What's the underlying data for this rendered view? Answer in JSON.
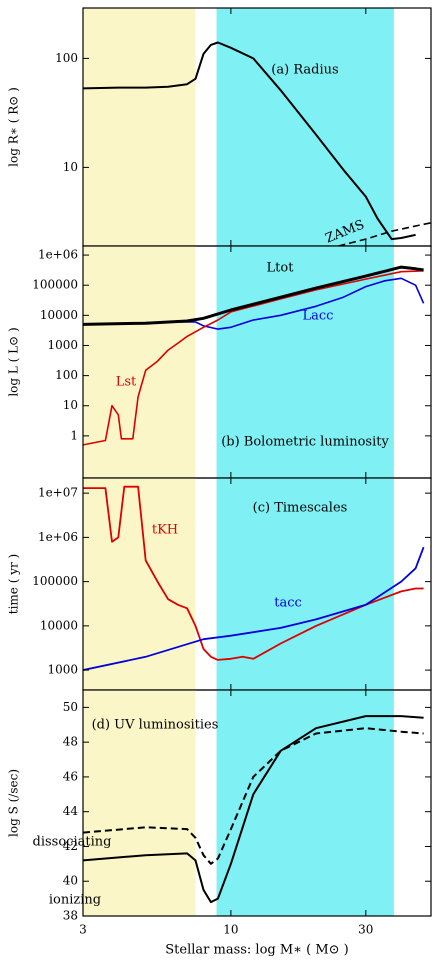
{
  "chart_data": [
    {
      "type": "line",
      "ylabel": "log R∗ ( R⊙ )",
      "log_x": true,
      "log_y": true,
      "xlim": [
        3,
        51
      ],
      "xticks": [
        3,
        10,
        30
      ],
      "ylim": [
        1.9,
        290
      ],
      "yticks": [
        10,
        100
      ],
      "spans": [
        {
          "from": 3,
          "to": 7.5,
          "color": "#fbf6c8"
        },
        {
          "from": 8.9,
          "to": 37.7,
          "color": "#7ff0f3"
        }
      ],
      "annotations": [
        {
          "text": "(a) Radius",
          "color": "#000000"
        },
        {
          "text": "ZAMS",
          "color": "#000000"
        }
      ],
      "series": [
        {
          "color": "#000000",
          "dash": false,
          "width": 2,
          "x": [
            3,
            4,
            5,
            6,
            7,
            7.5,
            8,
            8.5,
            9,
            10,
            12,
            15,
            20,
            25,
            30,
            33,
            37,
            40,
            45
          ],
          "values": [
            53,
            54,
            54,
            55,
            58,
            65,
            110,
            133,
            140,
            125,
            100,
            51,
            20,
            9.5,
            5.4,
            3.4,
            2.2,
            2.25,
            2.4
          ]
        },
        {
          "color": "#000000",
          "dash": true,
          "width": 1.6,
          "x": [
            24,
            30,
            37,
            45,
            51
          ],
          "values": [
            1.9,
            2.2,
            2.6,
            2.9,
            3.1
          ]
        }
      ]
    },
    {
      "type": "line",
      "ylabel": "log L ( L⊙ )",
      "log_x": true,
      "log_y": true,
      "xlim": [
        3,
        51
      ],
      "xticks": [
        3,
        10,
        30
      ],
      "ylim": [
        0.04,
        2000000
      ],
      "yticks": [
        1,
        10,
        100,
        1000,
        10000,
        100000,
        {
          "value": 1000000,
          "label": "1e+06"
        }
      ],
      "spans": [
        {
          "from": 3,
          "to": 7.5,
          "color": "#fbf6c8"
        },
        {
          "from": 8.9,
          "to": 37.7,
          "color": "#7ff0f3"
        }
      ],
      "annotations": [
        {
          "text": "Ltot",
          "color": "#000000"
        },
        {
          "text": "Lacc",
          "color": "#0000dd"
        },
        {
          "text": "Lst",
          "color": "#dd0000"
        },
        {
          "text": "(b) Bolometric luminosity",
          "color": "#000000"
        }
      ],
      "series": [
        {
          "color": "#0000dd",
          "dash": false,
          "width": 1.6,
          "x": [
            3,
            6,
            7.5,
            8,
            9,
            10,
            12,
            15,
            20,
            25,
            30,
            35,
            40,
            45,
            48
          ],
          "values": [
            5000,
            6000,
            6000,
            4500,
            3500,
            4000,
            7000,
            10000,
            20000,
            40000,
            90000,
            140000,
            170000,
            100000,
            25000
          ]
        },
        {
          "color": "#dd0000",
          "dash": false,
          "width": 1.6,
          "x": [
            3,
            3.6,
            3.8,
            4,
            4.1,
            4.5,
            4.7,
            5,
            5.5,
            6,
            6.5,
            7,
            8,
            9,
            10,
            15,
            20,
            30,
            40,
            48
          ],
          "values": [
            0.5,
            0.7,
            10,
            5,
            0.8,
            0.8,
            20,
            150,
            300,
            700,
            1200,
            2000,
            4000,
            7000,
            13000,
            35000,
            70000,
            160000,
            280000,
            300000
          ]
        },
        {
          "color": "#000000",
          "dash": false,
          "width": 3,
          "x": [
            3,
            5,
            7,
            8,
            10,
            15,
            20,
            30,
            40,
            45,
            48
          ],
          "values": [
            5000,
            5500,
            6500,
            8000,
            15000,
            40000,
            80000,
            200000,
            400000,
            350000,
            320000
          ]
        }
      ]
    },
    {
      "type": "line",
      "ylabel": "time ( yr )",
      "log_x": true,
      "log_y": true,
      "xlim": [
        3,
        51
      ],
      "xticks": [
        3,
        10,
        30
      ],
      "ylim": [
        355,
        22000000
      ],
      "yticks": [
        1000,
        10000,
        100000,
        {
          "value": 1000000,
          "label": "1e+06"
        },
        {
          "value": 10000000,
          "label": "1e+07"
        }
      ],
      "spans": [
        {
          "from": 3,
          "to": 7.5,
          "color": "#fbf6c8"
        },
        {
          "from": 8.9,
          "to": 37.7,
          "color": "#7ff0f3"
        }
      ],
      "annotations": [
        {
          "text": "(c) Timescales",
          "color": "#000000"
        },
        {
          "text": "tKH",
          "color": "#dd0000"
        },
        {
          "text": "tacc",
          "color": "#0000dd"
        }
      ],
      "series": [
        {
          "color": "#dd0000",
          "dash": false,
          "width": 1.8,
          "x": [
            3,
            3.6,
            3.8,
            4,
            4.2,
            4.7,
            5,
            5.5,
            6,
            6.5,
            7,
            7.5,
            8,
            8.5,
            9,
            10,
            11,
            12,
            15,
            20,
            30,
            40,
            45,
            48
          ],
          "values": [
            13000000,
            13000000,
            800000,
            1000000,
            14000000,
            14000000,
            300000,
            100000,
            40000,
            30000,
            25000,
            10000,
            3000,
            2000,
            1700,
            1800,
            2000,
            1800,
            4000,
            10000,
            30000,
            60000,
            70000,
            70000
          ]
        },
        {
          "color": "#0000dd",
          "dash": false,
          "width": 1.8,
          "x": [
            3,
            5,
            8,
            10,
            15,
            20,
            30,
            40,
            45,
            48
          ],
          "values": [
            1000,
            2000,
            5000,
            6000,
            9000,
            14000,
            30000,
            100000,
            200000,
            600000
          ]
        }
      ]
    },
    {
      "type": "line",
      "ylabel": "log S (/sec)",
      "xlabel": "Stellar mass: log M∗ ( M⊙ )",
      "log_x": true,
      "log_y": false,
      "xlim": [
        3,
        51
      ],
      "xticks": [
        3,
        10,
        30
      ],
      "ylim": [
        38,
        51
      ],
      "yticks": [
        38,
        40,
        42,
        44,
        46,
        48,
        50
      ],
      "spans": [
        {
          "from": 3,
          "to": 7.5,
          "color": "#fbf6c8"
        },
        {
          "from": 8.9,
          "to": 37.7,
          "color": "#7ff0f3"
        }
      ],
      "annotations": [
        {
          "text": "(d) UV luminosities",
          "color": "#000000"
        },
        {
          "text": "dissociating",
          "color": "#000000"
        },
        {
          "text": "ionizing",
          "color": "#000000"
        }
      ],
      "series": [
        {
          "color": "#000000",
          "dash": false,
          "width": 2,
          "x": [
            3,
            5,
            7,
            7.5,
            8,
            8.5,
            9,
            10,
            12,
            15,
            20,
            30,
            40,
            48
          ],
          "values": [
            41.2,
            41.5,
            41.6,
            41.2,
            39.5,
            38.8,
            39,
            41,
            45,
            47.5,
            48.8,
            49.5,
            49.5,
            49.4
          ]
        },
        {
          "color": "#000000",
          "dash": true,
          "width": 2,
          "x": [
            3,
            5,
            7,
            7.5,
            8,
            8.5,
            9,
            10,
            12,
            15,
            20,
            30,
            40,
            48
          ],
          "values": [
            42.8,
            43.1,
            43,
            42.5,
            41.5,
            41,
            41.3,
            43,
            46,
            47.5,
            48.5,
            48.8,
            48.6,
            48.5
          ]
        }
      ]
    }
  ]
}
